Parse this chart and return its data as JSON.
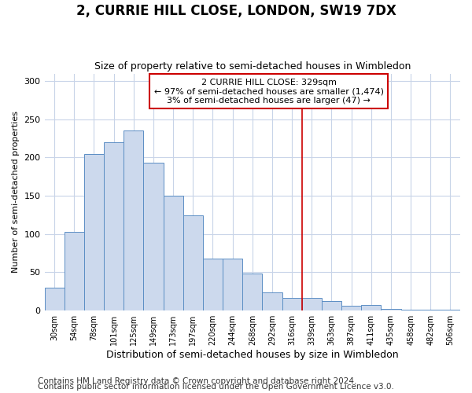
{
  "title": "2, CURRIE HILL CLOSE, LONDON, SW19 7DX",
  "subtitle": "Size of property relative to semi-detached houses in Wimbledon",
  "xlabel": "Distribution of semi-detached houses by size in Wimbledon",
  "ylabel": "Number of semi-detached properties",
  "footnote1": "Contains HM Land Registry data © Crown copyright and database right 2024.",
  "footnote2": "Contains public sector information licensed under the Open Government Licence v3.0.",
  "bin_labels": [
    "30sqm",
    "54sqm",
    "78sqm",
    "101sqm",
    "125sqm",
    "149sqm",
    "173sqm",
    "197sqm",
    "220sqm",
    "244sqm",
    "268sqm",
    "292sqm",
    "316sqm",
    "339sqm",
    "363sqm",
    "387sqm",
    "411sqm",
    "435sqm",
    "458sqm",
    "482sqm",
    "506sqm"
  ],
  "bar_values": [
    30,
    103,
    205,
    220,
    235,
    193,
    150,
    124,
    68,
    68,
    48,
    23,
    16,
    16,
    12,
    6,
    7,
    2,
    1,
    1,
    1
  ],
  "bar_color": "#ccd9ed",
  "bar_edge_color": "#5b8ec4",
  "highlight_x": 12.5,
  "highlight_line_color": "#cc0000",
  "annotation_text_line1": "2 CURRIE HILL CLOSE: 329sqm",
  "annotation_text_line2": "← 97% of semi-detached houses are smaller (1,474)",
  "annotation_text_line3": "3% of semi-detached houses are larger (47) →",
  "annotation_box_color": "#ffffff",
  "annotation_box_edge_color": "#cc0000",
  "ylim": [
    0,
    310
  ],
  "xlim_left": -0.5,
  "xlim_right": 20.5,
  "background_color": "#ffffff",
  "grid_color": "#c8d4e8",
  "title_fontsize": 12,
  "subtitle_fontsize": 9,
  "footnote_fontsize": 7.5
}
